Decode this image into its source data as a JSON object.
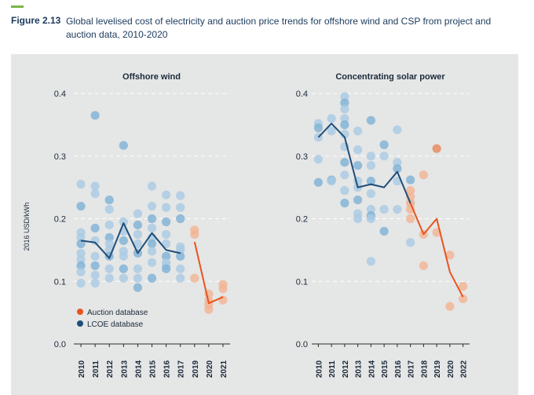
{
  "figure": {
    "label": "Figure 2.13",
    "title": "Global levelised cost of electricity and auction price trends for offshore wind and CSP from project and auction data, 2010-2020"
  },
  "colors": {
    "panel": "#e5e6e6",
    "lcoe_dots": "#a9cbe3",
    "lcoe_dots_dark": "#7fb2d6",
    "lcoe_line": "#1f4e79",
    "auction_dots": "#f2b494",
    "auction_line": "#e8541e",
    "highlight_dot": "#e8895a"
  },
  "chart_data": [
    {
      "type": "scatter",
      "title": "Offshore wind",
      "ylabel": "2016 USD/kWh",
      "ylim": [
        0,
        0.4
      ],
      "yticks": [
        "0.0",
        "0.1",
        "0.2",
        "0.3",
        "0.4"
      ],
      "categories": [
        "2010",
        "2011",
        "2012",
        "2013",
        "2014",
        "2015",
        "2016",
        "2017",
        "2019",
        "2020",
        "2021"
      ],
      "legend": [
        "Auction database",
        "LCOE database"
      ],
      "grid": true,
      "series": [
        {
          "name": "LCOE database",
          "kind": "line",
          "x": [
            "2010",
            "2011",
            "2012",
            "2013",
            "2014",
            "2015",
            "2016",
            "2017"
          ],
          "values": [
            0.165,
            0.162,
            0.137,
            0.193,
            0.145,
            0.177,
            0.15,
            0.145
          ]
        },
        {
          "name": "Auction database",
          "kind": "line",
          "x": [
            "2019",
            "2020",
            "2021"
          ],
          "values": [
            0.163,
            0.065,
            0.075
          ]
        },
        {
          "name": "LCOE database",
          "kind": "points",
          "points": [
            [
              "2010",
              0.255
            ],
            [
              "2010",
              0.22
            ],
            [
              "2010",
              0.178
            ],
            [
              "2010",
              0.17
            ],
            [
              "2010",
              0.16
            ],
            [
              "2010",
              0.145
            ],
            [
              "2010",
              0.135
            ],
            [
              "2010",
              0.125
            ],
            [
              "2010",
              0.115
            ],
            [
              "2010",
              0.097
            ],
            [
              "2011",
              0.365
            ],
            [
              "2011",
              0.252
            ],
            [
              "2011",
              0.24
            ],
            [
              "2011",
              0.185
            ],
            [
              "2011",
              0.165
            ],
            [
              "2011",
              0.14
            ],
            [
              "2011",
              0.125
            ],
            [
              "2011",
              0.11
            ],
            [
              "2011",
              0.097
            ],
            [
              "2012",
              0.23
            ],
            [
              "2012",
              0.215
            ],
            [
              "2012",
              0.19
            ],
            [
              "2012",
              0.17
            ],
            [
              "2012",
              0.16
            ],
            [
              "2012",
              0.15
            ],
            [
              "2012",
              0.14
            ],
            [
              "2012",
              0.12
            ],
            [
              "2012",
              0.105
            ],
            [
              "2013",
              0.317
            ],
            [
              "2013",
              0.195
            ],
            [
              "2013",
              0.18
            ],
            [
              "2013",
              0.165
            ],
            [
              "2013",
              0.148
            ],
            [
              "2013",
              0.14
            ],
            [
              "2013",
              0.12
            ],
            [
              "2013",
              0.105
            ],
            [
              "2014",
              0.208
            ],
            [
              "2014",
              0.19
            ],
            [
              "2014",
              0.175
            ],
            [
              "2014",
              0.16
            ],
            [
              "2014",
              0.145
            ],
            [
              "2014",
              0.12
            ],
            [
              "2014",
              0.105
            ],
            [
              "2014",
              0.09
            ],
            [
              "2015",
              0.252
            ],
            [
              "2015",
              0.22
            ],
            [
              "2015",
              0.2
            ],
            [
              "2015",
              0.185
            ],
            [
              "2015",
              0.17
            ],
            [
              "2015",
              0.16
            ],
            [
              "2015",
              0.148
            ],
            [
              "2015",
              0.13
            ],
            [
              "2015",
              0.105
            ],
            [
              "2016",
              0.238
            ],
            [
              "2016",
              0.218
            ],
            [
              "2016",
              0.195
            ],
            [
              "2016",
              0.175
            ],
            [
              "2016",
              0.16
            ],
            [
              "2016",
              0.14
            ],
            [
              "2016",
              0.13
            ],
            [
              "2016",
              0.125
            ],
            [
              "2016",
              0.12
            ],
            [
              "2017",
              0.237
            ],
            [
              "2017",
              0.218
            ],
            [
              "2017",
              0.2
            ],
            [
              "2017",
              0.155
            ],
            [
              "2017",
              0.15
            ],
            [
              "2017",
              0.14
            ],
            [
              "2017",
              0.12
            ],
            [
              "2017",
              0.105
            ]
          ]
        },
        {
          "name": "Auction database",
          "kind": "points",
          "points": [
            [
              "2019",
              0.182
            ],
            [
              "2019",
              0.175
            ],
            [
              "2019",
              0.105
            ],
            [
              "2020",
              0.08
            ],
            [
              "2020",
              0.07
            ],
            [
              "2020",
              0.063
            ],
            [
              "2020",
              0.055
            ],
            [
              "2021",
              0.095
            ],
            [
              "2021",
              0.088
            ],
            [
              "2021",
              0.07
            ]
          ]
        }
      ]
    },
    {
      "type": "scatter",
      "title": "Concentrating solar power",
      "ylim": [
        0,
        0.4
      ],
      "yticks": [
        "0.0",
        "0.1",
        "0.2",
        "0.3",
        "0.4"
      ],
      "categories": [
        "2010",
        "2011",
        "2012",
        "2013",
        "2014",
        "2015",
        "2016",
        "2017",
        "2018",
        "2019",
        "2020",
        "2022"
      ],
      "grid": true,
      "series": [
        {
          "name": "LCOE database",
          "kind": "line",
          "x": [
            "2010",
            "2011",
            "2012",
            "2013",
            "2014",
            "2015",
            "2016",
            "2017"
          ],
          "values": [
            0.33,
            0.352,
            0.33,
            0.25,
            0.255,
            0.25,
            0.275,
            0.225
          ]
        },
        {
          "name": "Auction database",
          "kind": "line",
          "x": [
            "2017",
            "2018",
            "2019",
            "2020",
            "2022"
          ],
          "values": [
            0.225,
            0.175,
            0.2,
            0.115,
            0.075
          ]
        },
        {
          "name": "LCOE database",
          "kind": "points",
          "points": [
            [
              "2010",
              0.352
            ],
            [
              "2010",
              0.345
            ],
            [
              "2010",
              0.33
            ],
            [
              "2010",
              0.295
            ],
            [
              "2010",
              0.258
            ],
            [
              "2011",
              0.36
            ],
            [
              "2011",
              0.34
            ],
            [
              "2011",
              0.262
            ],
            [
              "2011",
              0.26
            ],
            [
              "2012",
              0.395
            ],
            [
              "2012",
              0.385
            ],
            [
              "2012",
              0.375
            ],
            [
              "2012",
              0.36
            ],
            [
              "2012",
              0.35
            ],
            [
              "2012",
              0.335
            ],
            [
              "2012",
              0.315
            ],
            [
              "2012",
              0.29
            ],
            [
              "2012",
              0.27
            ],
            [
              "2012",
              0.245
            ],
            [
              "2012",
              0.225
            ],
            [
              "2013",
              0.34
            ],
            [
              "2013",
              0.31
            ],
            [
              "2013",
              0.285
            ],
            [
              "2013",
              0.26
            ],
            [
              "2013",
              0.25
            ],
            [
              "2013",
              0.23
            ],
            [
              "2013",
              0.208
            ],
            [
              "2013",
              0.2
            ],
            [
              "2014",
              0.357
            ],
            [
              "2014",
              0.3
            ],
            [
              "2014",
              0.285
            ],
            [
              "2014",
              0.26
            ],
            [
              "2014",
              0.24
            ],
            [
              "2014",
              0.215
            ],
            [
              "2014",
              0.205
            ],
            [
              "2014",
              0.2
            ],
            [
              "2014",
              0.132
            ],
            [
              "2015",
              0.318
            ],
            [
              "2015",
              0.3
            ],
            [
              "2015",
              0.215
            ],
            [
              "2015",
              0.18
            ],
            [
              "2016",
              0.342
            ],
            [
              "2016",
              0.29
            ],
            [
              "2016",
              0.28
            ],
            [
              "2016",
              0.26
            ],
            [
              "2016",
              0.215
            ],
            [
              "2017",
              0.262
            ],
            [
              "2017",
              0.225
            ],
            [
              "2017",
              0.162
            ]
          ]
        },
        {
          "name": "Auction database",
          "kind": "points",
          "points": [
            [
              "2017",
              0.245
            ],
            [
              "2017",
              0.235
            ],
            [
              "2017",
              0.225
            ],
            [
              "2017",
              0.215
            ],
            [
              "2017",
              0.2
            ],
            [
              "2018",
              0.27
            ],
            [
              "2018",
              0.175
            ],
            [
              "2018",
              0.125
            ],
            [
              "2019",
              0.312
            ],
            [
              "2019",
              0.178
            ],
            [
              "2020",
              0.142
            ],
            [
              "2020",
              0.06
            ],
            [
              "2022",
              0.092
            ],
            [
              "2022",
              0.072
            ]
          ]
        }
      ]
    }
  ]
}
